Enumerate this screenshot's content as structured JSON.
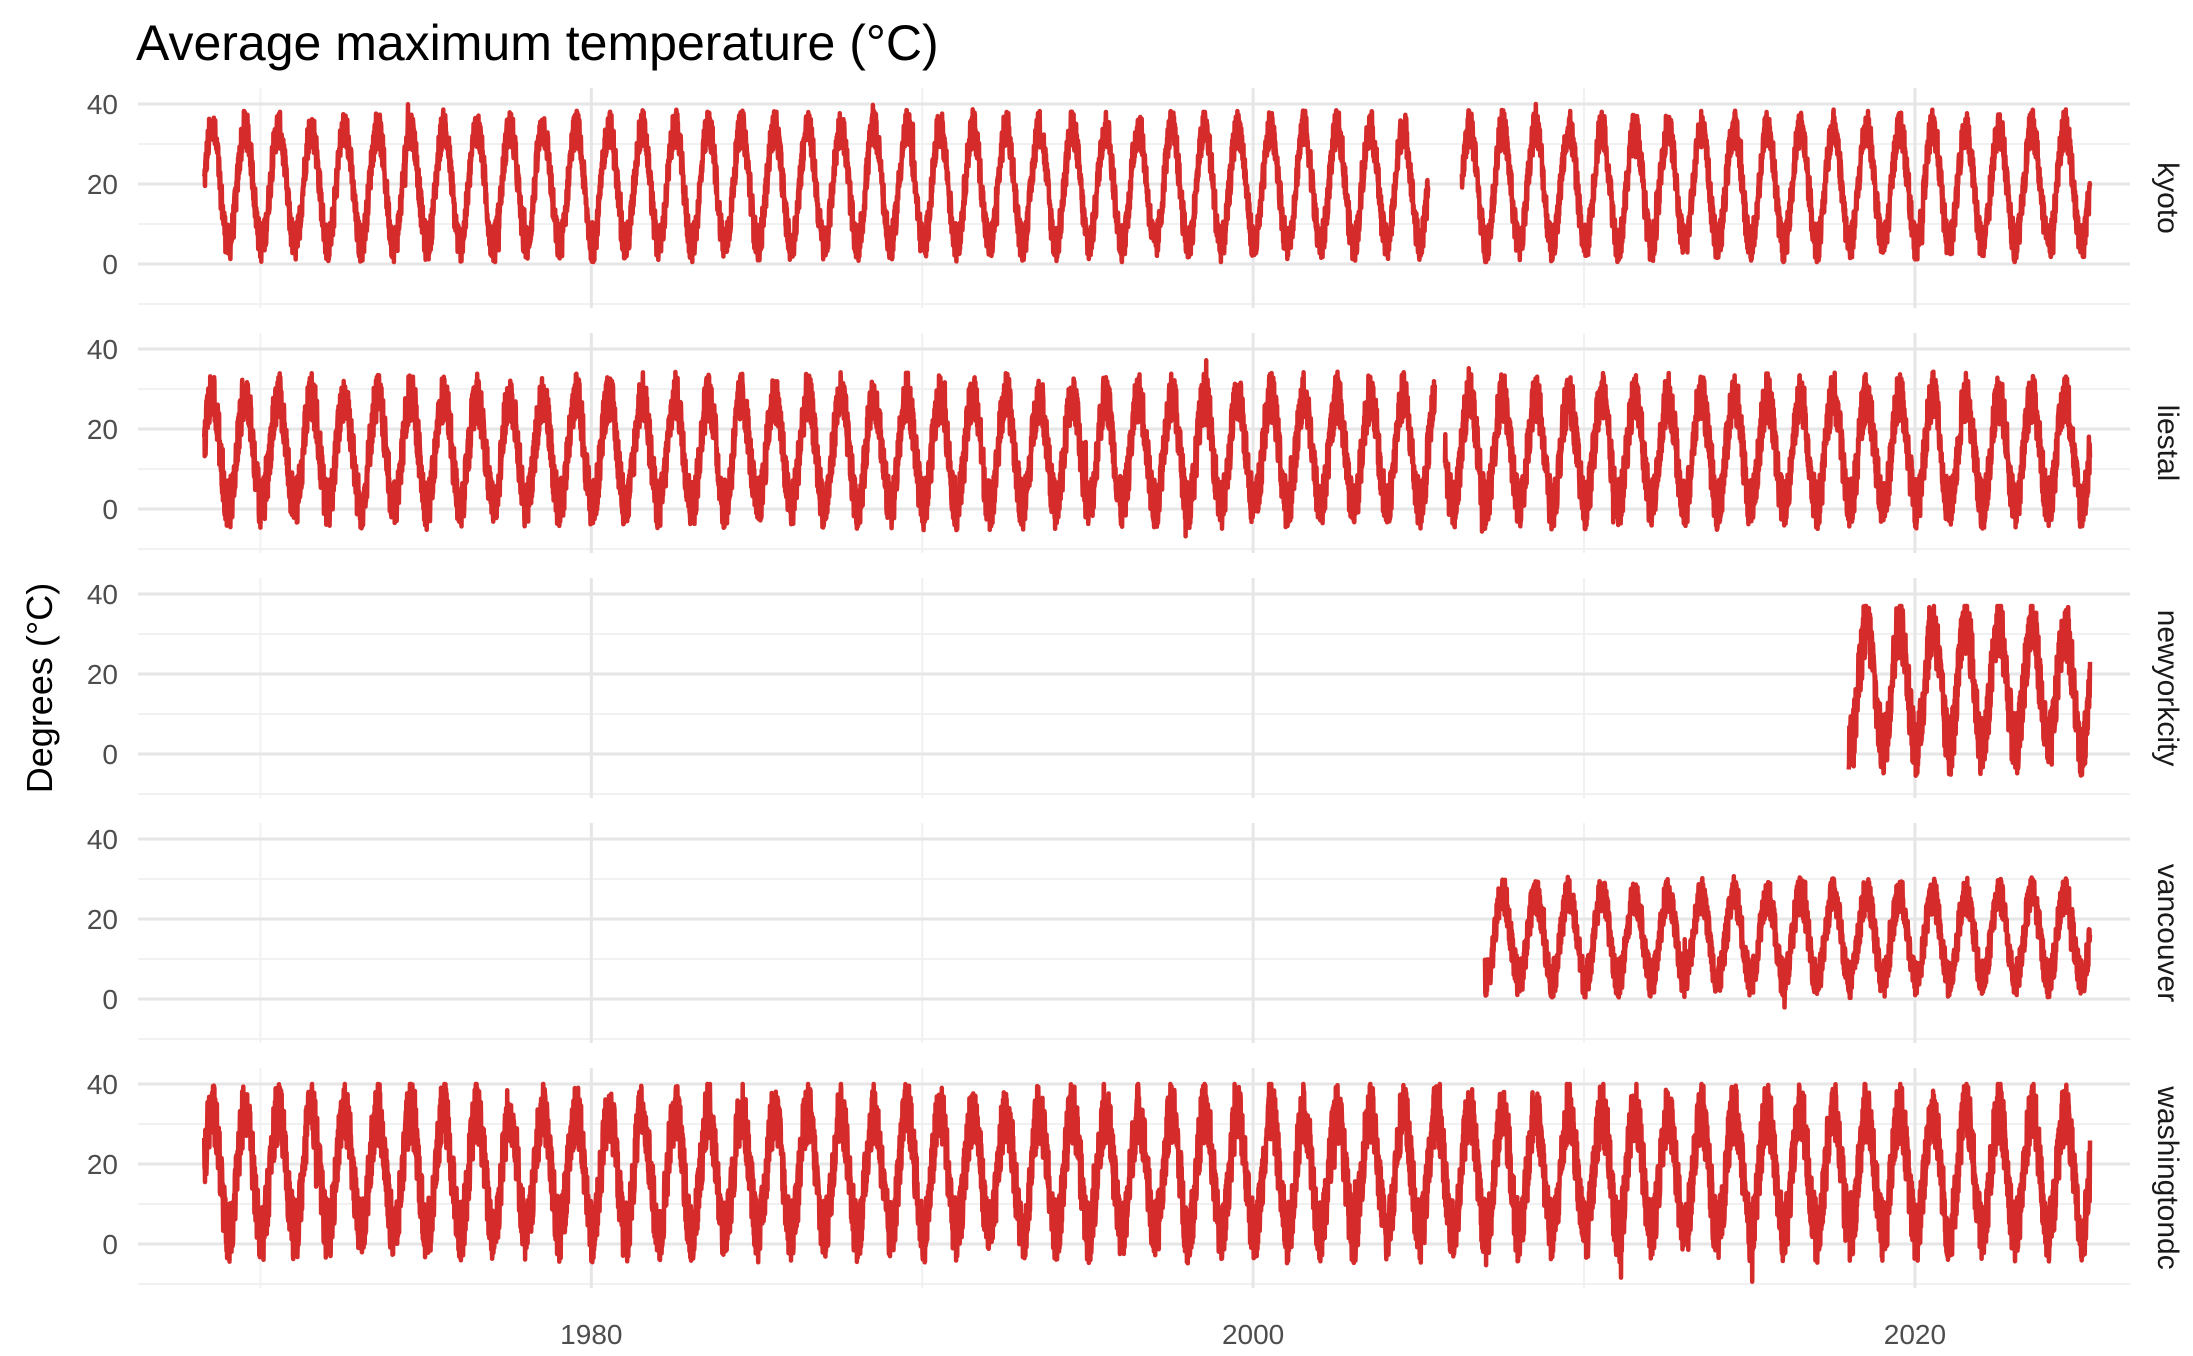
{
  "chart_data": {
    "type": "line",
    "title": "Average maximum temperature (°C)",
    "xlabel": "",
    "ylabel": "Degrees (°C)",
    "x_ticks": [
      1980,
      2000,
      2020
    ],
    "y_ticks": [
      0,
      20,
      40
    ],
    "xlim": [
      1966.3,
      2026.5
    ],
    "ylim": [
      -11,
      44
    ],
    "grid": true,
    "line_color": "#d62b2b",
    "facets": [
      {
        "name": "kyoto",
        "start": 1968.3,
        "end": 2025.3,
        "gaps": [
          [
            2005.3,
            2006.3
          ]
        ],
        "summer": 34,
        "winter": 5,
        "noise": 3,
        "min": 0.5,
        "max": 40
      },
      {
        "name": "liestal",
        "start": 1968.3,
        "end": 2025.3,
        "gaps": [
          [
            2005.5,
            2005.8
          ]
        ],
        "summer": 28,
        "winter": 1,
        "noise": 4,
        "min": -10,
        "max": 38
      },
      {
        "name": "newyorkcity",
        "start": 2018.0,
        "end": 2025.3,
        "gaps": [],
        "summer": 32,
        "winter": 2,
        "noise": 5,
        "min": -8,
        "max": 37
      },
      {
        "name": "vancouver",
        "start": 2007.0,
        "end": 2025.3,
        "gaps": [],
        "summer": 26,
        "winter": 5,
        "noise": 3,
        "min": -7,
        "max": 32
      },
      {
        "name": "washingtondc",
        "start": 1968.3,
        "end": 2025.3,
        "gaps": [],
        "summer": 33,
        "winter": 3,
        "noise": 5,
        "min": -12,
        "max": 40
      }
    ]
  }
}
